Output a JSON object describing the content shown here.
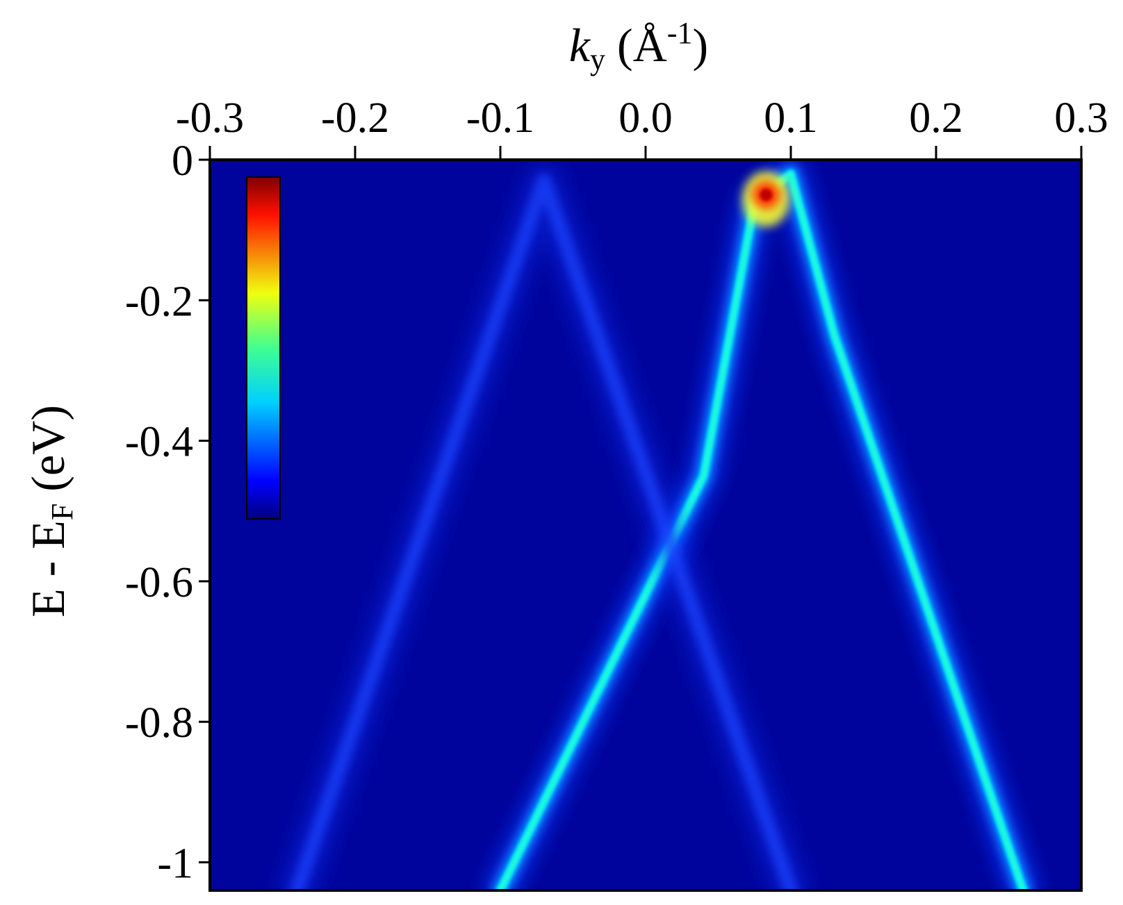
{
  "chart_data": {
    "type": "heatmap",
    "title": "",
    "xlabel": {
      "symbol": "k",
      "subscript": "y",
      "unit": " (Å",
      "exponent": "-1",
      "close": ")"
    },
    "ylabel": {
      "prefix": "E - E",
      "subscript": "F",
      "suffix": " (eV)"
    },
    "x_axis_position": "top",
    "xlim": [
      -0.3,
      0.3
    ],
    "ylim": [
      -1.04,
      0.0
    ],
    "xticks": [
      -0.3,
      -0.2,
      -0.1,
      0.0,
      0.1,
      0.2,
      0.3
    ],
    "xtick_labels": [
      "-0.3",
      "-0.2",
      "-0.1",
      "0.0",
      "0.1",
      "0.2",
      "0.3"
    ],
    "yticks": [
      0,
      -0.2,
      -0.4,
      -0.6,
      -0.8,
      -1.0
    ],
    "ytick_labels": [
      "0",
      "-0.2",
      "-0.4",
      "-0.6",
      "-0.8",
      "-1"
    ],
    "colormap": "jet",
    "colorbar": {
      "position": "top-left inside plot",
      "ticks": "none"
    },
    "grid": false,
    "bands": [
      {
        "description": "bright bands (Dirac-like crossing near Fermi level)",
        "intensity": "high",
        "points": [
          {
            "k": -0.1,
            "E": -1.04
          },
          {
            "k": 0.04,
            "E": -0.45
          },
          {
            "k": 0.075,
            "E": -0.06
          },
          {
            "k": 0.1,
            "E": -0.02
          },
          {
            "k": 0.13,
            "E": -0.25
          },
          {
            "k": 0.26,
            "E": -1.04
          }
        ]
      },
      {
        "description": "weak shadow band",
        "intensity": "low",
        "points": [
          {
            "k": -0.24,
            "E": -1.04
          },
          {
            "k": -0.07,
            "E": -0.03
          },
          {
            "k": 0.1,
            "E": -1.04
          }
        ]
      }
    ],
    "hotspot": {
      "k": 0.083,
      "E": -0.05,
      "intensity": "max"
    }
  }
}
